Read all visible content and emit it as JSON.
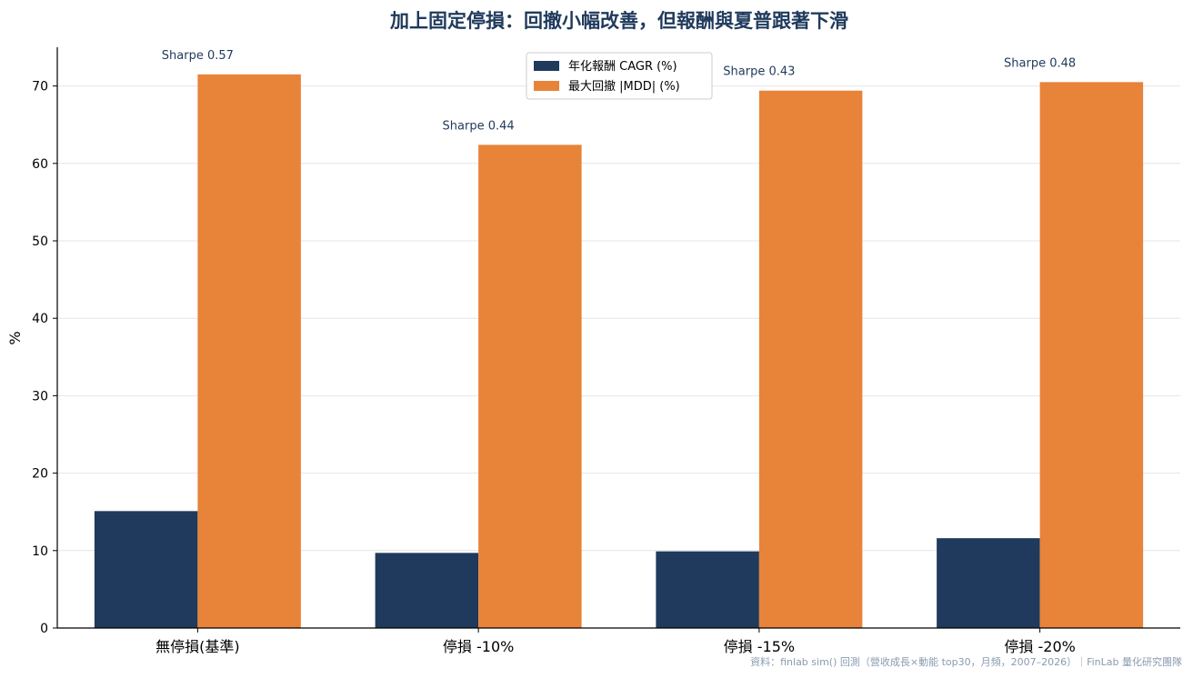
{
  "chart_data": {
    "type": "bar",
    "title": "加上固定停損：回撤小幅改善，但報酬與夏普跟著下滑",
    "ylabel": "%",
    "xlabel": "",
    "ylim": [
      0,
      75
    ],
    "yticks": [
      0,
      10,
      20,
      30,
      40,
      50,
      60,
      70
    ],
    "grid": "y",
    "legend_position": "top-center",
    "categories": [
      "無停損(基準)",
      "停損 -10%",
      "停損 -15%",
      "停損 -20%"
    ],
    "series": [
      {
        "name": "年化報酬 CAGR (%)",
        "color": "#1f3a5c",
        "values": [
          15.1,
          9.7,
          9.9,
          11.6
        ]
      },
      {
        "name": "最大回撤 |MDD| (%)",
        "color": "#e8833a",
        "values": [
          71.5,
          62.4,
          69.4,
          70.5
        ]
      }
    ],
    "annotations": [
      "Sharpe 0.57",
      "Sharpe 0.44",
      "Sharpe 0.43",
      "Sharpe 0.48"
    ],
    "source": "資料：finlab sim() 回測（營收成長×動能 top30，月頻，2007–2026）｜FinLab 量化研究團隊"
  }
}
